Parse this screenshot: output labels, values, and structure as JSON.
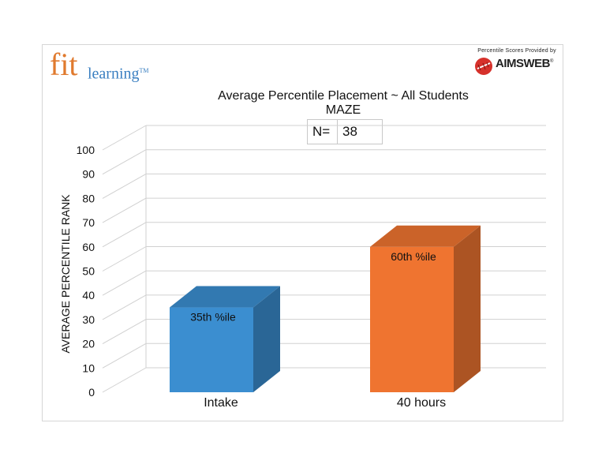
{
  "logo": {
    "fit": "fit",
    "learning": "learning",
    "tm": "TM"
  },
  "provider": {
    "caption": "Percentile Scores Provided by",
    "name": "AIMSWEB",
    "mark": "®"
  },
  "n_box": {
    "label": "N=",
    "value": "38"
  },
  "chart_data": {
    "type": "bar",
    "title": "Average Percentile Placement ~ All Students",
    "subtitle": "MAZE",
    "ylabel": "AVERAGE PERCENTILE RANK",
    "xlabel": "",
    "ylim": [
      0,
      100
    ],
    "yticks": [
      0,
      10,
      20,
      30,
      40,
      50,
      60,
      70,
      80,
      90,
      100
    ],
    "grid": true,
    "style": "3d",
    "categories": [
      "Intake",
      "40 hours"
    ],
    "values": [
      35,
      60
    ],
    "data_labels": [
      "35th %ile",
      "60th %ile"
    ],
    "colors": [
      "#3b8ed0",
      "#ef7430"
    ]
  }
}
